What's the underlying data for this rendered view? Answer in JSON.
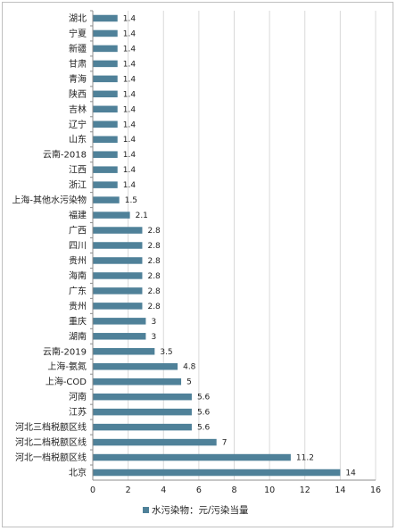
{
  "chart_data": {
    "type": "bar",
    "orientation": "horizontal",
    "categories": [
      "湖北",
      "宁夏",
      "新疆",
      "甘肃",
      "青海",
      "陕西",
      "吉林",
      "辽宁",
      "山东",
      "云南-2018",
      "江西",
      "浙江",
      "上海-其他水污染物",
      "福建",
      "广西",
      "四川",
      "贵州",
      "海南",
      "广东",
      "贵州",
      "重庆",
      "湖南",
      "云南-2019",
      "上海-氨氮",
      "上海-COD",
      "河南",
      "江苏",
      "河北三档税额区线",
      "河北二档税额区线",
      "河北一档税额区线",
      "北京"
    ],
    "series": [
      {
        "name": "水污染物：元/污染当量",
        "values": [
          1.4,
          1.4,
          1.4,
          1.4,
          1.4,
          1.4,
          1.4,
          1.4,
          1.4,
          1.4,
          1.4,
          1.4,
          1.5,
          2.1,
          2.8,
          2.8,
          2.8,
          2.8,
          2.8,
          2.8,
          3,
          3,
          3.5,
          4.8,
          5,
          5.6,
          5.6,
          5.6,
          7,
          11.2,
          14
        ],
        "color": "#4f8199"
      }
    ],
    "xlim": [
      0,
      16
    ],
    "x_ticks": [
      0,
      2,
      4,
      6,
      8,
      10,
      12,
      14,
      16
    ],
    "grid": "vertical",
    "legend_position": "bottom",
    "data_labels": true
  }
}
